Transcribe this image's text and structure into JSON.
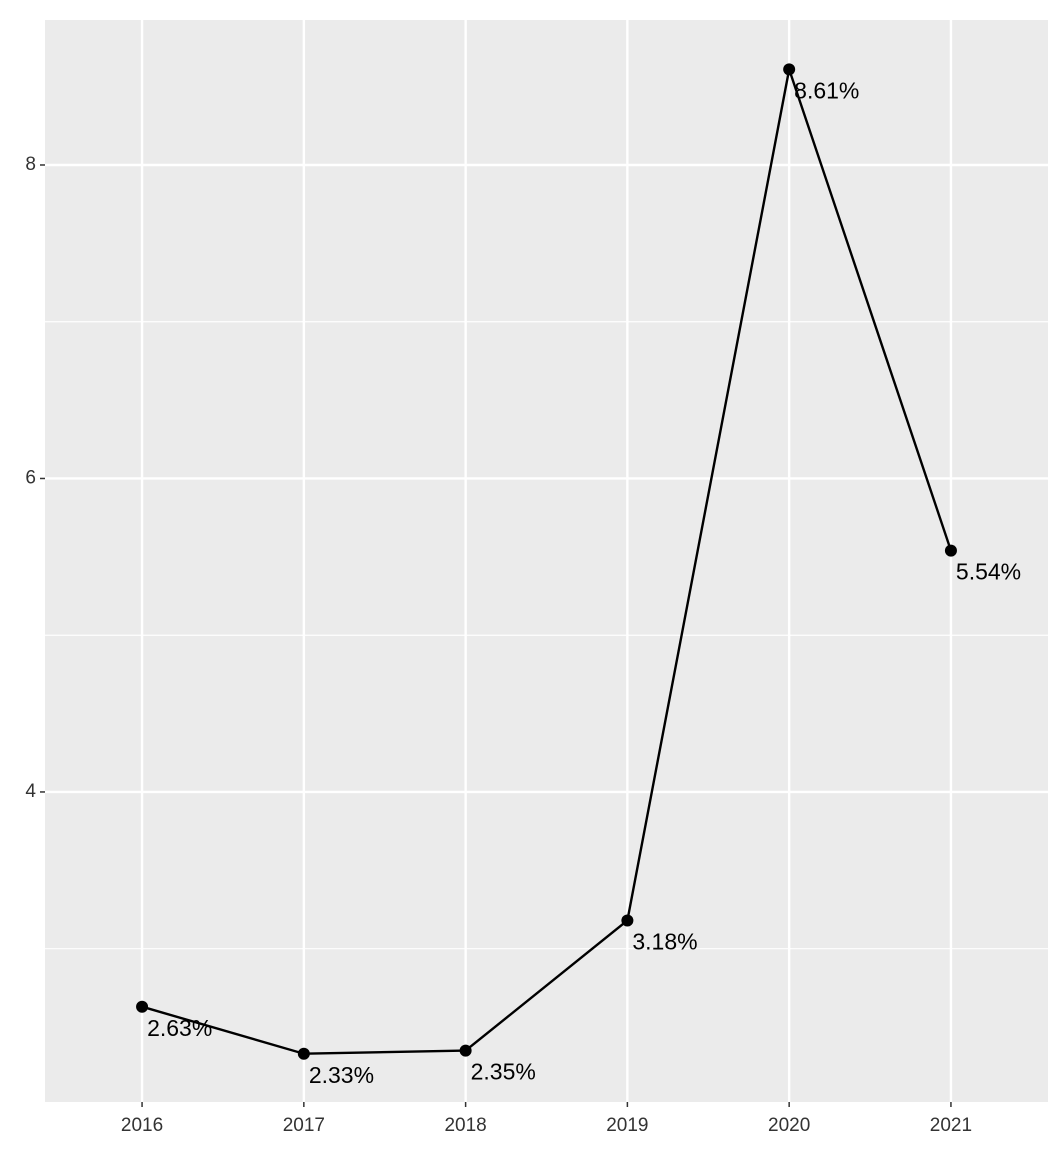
{
  "chart_data": {
    "type": "line",
    "categories": [
      "2016",
      "2017",
      "2018",
      "2019",
      "2020",
      "2021"
    ],
    "values": [
      2.63,
      2.33,
      2.35,
      3.18,
      8.61,
      5.54
    ],
    "value_labels": [
      "2.63%",
      "2.33%",
      "2.35%",
      "3.18%",
      "8.61%",
      "5.54%"
    ],
    "color": "#000000",
    "ylim": [
      2.022,
      8.925
    ],
    "yticks": [
      4,
      6,
      8
    ],
    "y_minor_grid": [
      3,
      5,
      7
    ],
    "grid": true
  }
}
